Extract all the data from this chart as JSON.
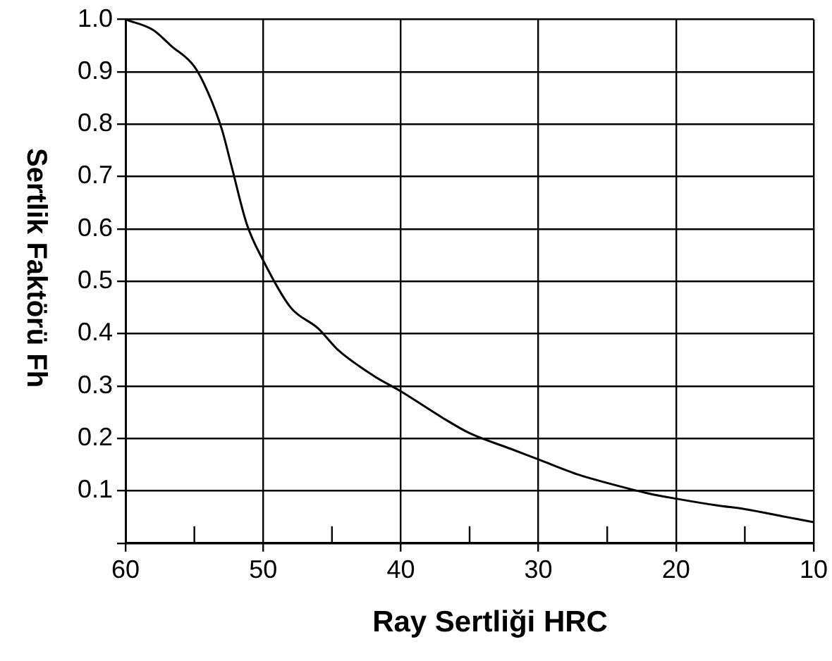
{
  "chart_data": {
    "type": "line",
    "xlabel": "Ray Sertliği HRC",
    "ylabel": "Sertlik Faktörü Fh",
    "x": [
      60,
      58,
      56.7,
      55,
      54,
      53,
      52.3,
      51.2,
      50,
      48,
      46,
      44.6,
      42,
      40,
      37,
      35,
      32,
      30,
      27,
      25,
      22,
      20,
      17,
      15,
      12,
      10
    ],
    "series": [
      {
        "color": "#000000",
        "values": [
          1.0,
          0.98,
          0.95,
          0.91,
          0.86,
          0.79,
          0.72,
          0.61,
          0.54,
          0.45,
          0.41,
          0.37,
          0.32,
          0.29,
          0.24,
          0.21,
          0.18,
          0.16,
          0.13,
          0.115,
          0.095,
          0.085,
          0.072,
          0.065,
          0.05,
          0.04
        ]
      }
    ],
    "xlim": [
      60,
      10
    ],
    "xticks": [
      60,
      {
        "value": 55,
        "label": null
      },
      50,
      {
        "value": 45,
        "label": null
      },
      40,
      {
        "value": 35,
        "label": null
      },
      30,
      {
        "value": 25,
        "label": null
      },
      20,
      {
        "value": 15,
        "label": null
      },
      10
    ],
    "ylim": [
      0,
      1.0
    ],
    "yticks": [
      {
        "value": 0,
        "label": null
      },
      0.1,
      0.2,
      0.3,
      0.4,
      0.5,
      0.6,
      0.7,
      0.8,
      0.9,
      {
        "value": 1.0,
        "label": "1.0"
      }
    ],
    "grid": true,
    "legend": false,
    "marker": "none",
    "line_style": "solid"
  }
}
